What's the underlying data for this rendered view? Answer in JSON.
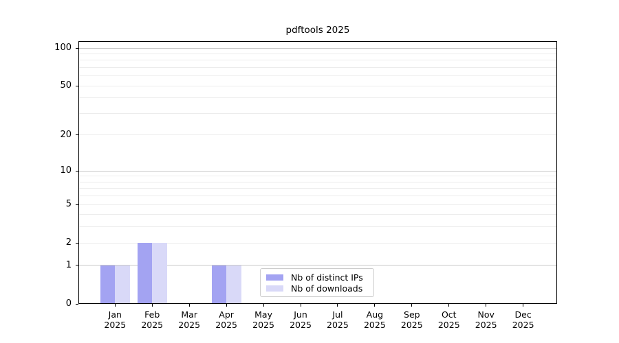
{
  "title": "pdftools 2025",
  "chart_data": {
    "type": "bar",
    "title": "pdftools 2025",
    "xlabel": "",
    "ylabel": "",
    "categories": [
      "Jan",
      "Feb",
      "Mar",
      "Apr",
      "May",
      "Jun",
      "Jul",
      "Aug",
      "Sep",
      "Oct",
      "Nov",
      "Dec"
    ],
    "category_year": "2025",
    "series": [
      {
        "name": "Nb of distinct IPs",
        "color": "#a3a3f2",
        "values": [
          1,
          2,
          0,
          1,
          0,
          0,
          0,
          0,
          0,
          0,
          0,
          0
        ]
      },
      {
        "name": "Nb of downloads",
        "color": "#d9d9f8",
        "values": [
          1,
          2,
          0,
          1,
          0,
          0,
          0,
          0,
          0,
          0,
          0,
          0
        ]
      }
    ],
    "yticks": [
      0,
      1,
      2,
      5,
      10,
      20,
      50,
      100
    ],
    "minor_grid_values": [
      2,
      3,
      4,
      5,
      6,
      7,
      8,
      9,
      20,
      30,
      40,
      50,
      60,
      70,
      80,
      90
    ],
    "major_grid_values": [
      1,
      10,
      100
    ],
    "y_scale": "log10(1+y)",
    "ylim": [
      0,
      113
    ],
    "grid": "horizontal",
    "legend_position": "bottom-center-inside",
    "colors": {
      "major_grid": "#c6c6c6",
      "minor_grid": "#ececec",
      "axis": "#000000",
      "text": "#000000",
      "background": "#ffffff"
    }
  }
}
